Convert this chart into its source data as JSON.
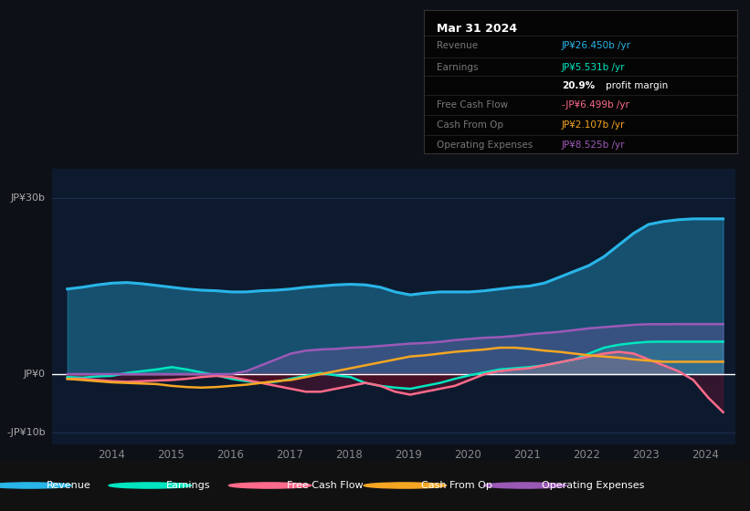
{
  "background_color": "#0d1117",
  "chart_bg": "#0d1a2e",
  "ylabel_top": "JP¥30b",
  "ylabel_zero": "JP¥0",
  "ylabel_bottom": "-JP¥10b",
  "ylim": [
    -12,
    35
  ],
  "xlim": [
    2013.0,
    2024.5
  ],
  "x_ticks": [
    2014,
    2015,
    2016,
    2017,
    2018,
    2019,
    2020,
    2021,
    2022,
    2023,
    2024
  ],
  "colors": {
    "revenue": "#29b5e8",
    "earnings": "#00e5bf",
    "free_cash_flow": "#ff6b8a",
    "cash_from_op": "#f5a623",
    "operating_expenses": "#9b59b6"
  },
  "info_box_title": "Mar 31 2024",
  "info_rows": [
    {
      "label": "Revenue",
      "value": "JP¥26.450b /yr",
      "color": "#29b5e8"
    },
    {
      "label": "Earnings",
      "value": "JP¥5.531b /yr",
      "color": "#00e5bf"
    },
    {
      "label": "",
      "value": "20.9% profit margin",
      "color": "#ffffff"
    },
    {
      "label": "Free Cash Flow",
      "value": "-JP¥6.499b /yr",
      "color": "#ff6b8a"
    },
    {
      "label": "Cash From Op",
      "value": "JP¥2.107b /yr",
      "color": "#f5a623"
    },
    {
      "label": "Operating Expenses",
      "value": "JP¥8.525b /yr",
      "color": "#9b59b6"
    }
  ],
  "legend_items": [
    {
      "label": "Revenue",
      "color": "#29b5e8"
    },
    {
      "label": "Earnings",
      "color": "#00e5bf"
    },
    {
      "label": "Free Cash Flow",
      "color": "#ff6b8a"
    },
    {
      "label": "Cash From Op",
      "color": "#f5a623"
    },
    {
      "label": "Operating Expenses",
      "color": "#9b59b6"
    }
  ]
}
